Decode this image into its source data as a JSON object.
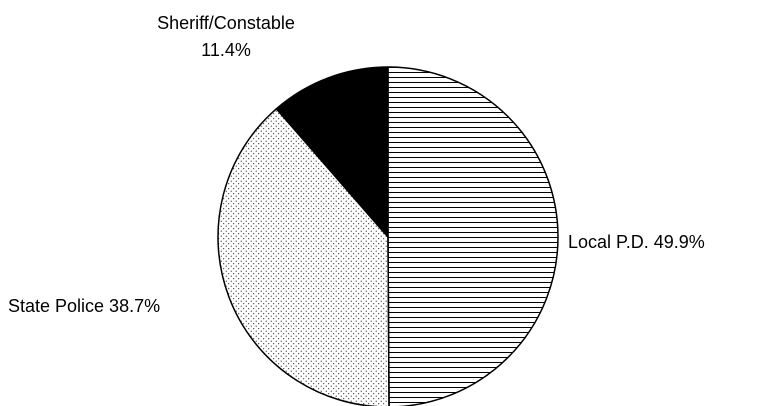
{
  "chart_data": {
    "type": "pie",
    "slices": [
      {
        "label": "Local P.D.",
        "value": 49.9,
        "pct_text": "49.9%",
        "pattern": "horizontal-lines",
        "fill": "#ffffff"
      },
      {
        "label": "State Police",
        "value": 38.7,
        "pct_text": "38.7%",
        "pattern": "dots",
        "fill": "#ffffff"
      },
      {
        "label": "Sheriff/Constable",
        "value": 11.4,
        "pct_text": "11.4%",
        "pattern": "solid",
        "fill": "#000000"
      }
    ],
    "start_angle": "12 o'clock",
    "direction": "clockwise",
    "legend": "none",
    "stroke_color": "#000000"
  }
}
